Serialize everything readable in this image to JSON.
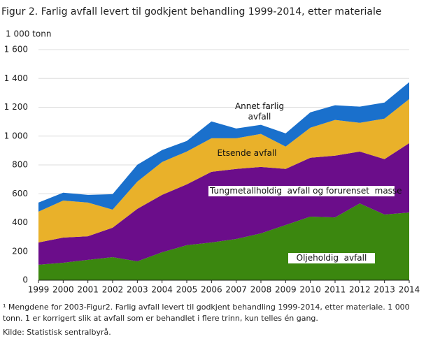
{
  "chart_data": {
    "type": "stacked_area",
    "title": "Figur 2. Farlig avfall levert til godkjent behandling 1999-2014, etter materiale",
    "y_label": "1 000 tonn",
    "categories": [
      "1999",
      "2000",
      "2001",
      "2002",
      "2003",
      "2004",
      "2005",
      "2006",
      "2007",
      "2008",
      "2009",
      "2010",
      "2011",
      "2012",
      "2013",
      "2014"
    ],
    "series": [
      {
        "name": "Oljeholdig  avfall",
        "color": "#3b870f",
        "values": [
          107,
          121,
          141,
          160,
          131,
          194,
          243,
          262,
          286,
          325,
          383,
          441,
          436,
          533,
          456,
          470
        ]
      },
      {
        "name": "Tungmetallholdig  avfall og forurenset  masse",
        "color": "#6b0d8a",
        "values": [
          155,
          175,
          164,
          204,
          364,
          398,
          422,
          490,
          486,
          461,
          389,
          409,
          428,
          360,
          384,
          481
        ]
      },
      {
        "name": "Etsende avfall",
        "color": "#e9b12a",
        "values": [
          214,
          257,
          234,
          126,
          189,
          228,
          228,
          233,
          213,
          229,
          155,
          208,
          248,
          199,
          281,
          306
        ]
      },
      {
        "name": "Annet farlig avfall",
        "color": "#1a70cc",
        "values": [
          63,
          54,
          53,
          107,
          117,
          83,
          73,
          117,
          68,
          63,
          92,
          107,
          102,
          112,
          112,
          117
        ]
      }
    ],
    "ylim": [
      0,
      1600
    ],
    "yticks": [
      0,
      200,
      400,
      600,
      800,
      {
        "value": 1000,
        "label": "1 000"
      },
      {
        "value": 1200,
        "label": "1 200"
      },
      {
        "value": 1400,
        "label": "1 400"
      },
      {
        "value": 1600,
        "label": "1 600"
      }
    ],
    "grid": true,
    "notes": [
      "¹ Mengdene for 2003-Figur2. Farlig avfall levert til godkjent behandling 1999-2014, etter materiale. 1 000 tonn.  1 er korrigert slik at avfall som er behandlet i flere trinn, kun telles én gang.",
      "Kilde: Statistisk sentralbyrå."
    ]
  }
}
